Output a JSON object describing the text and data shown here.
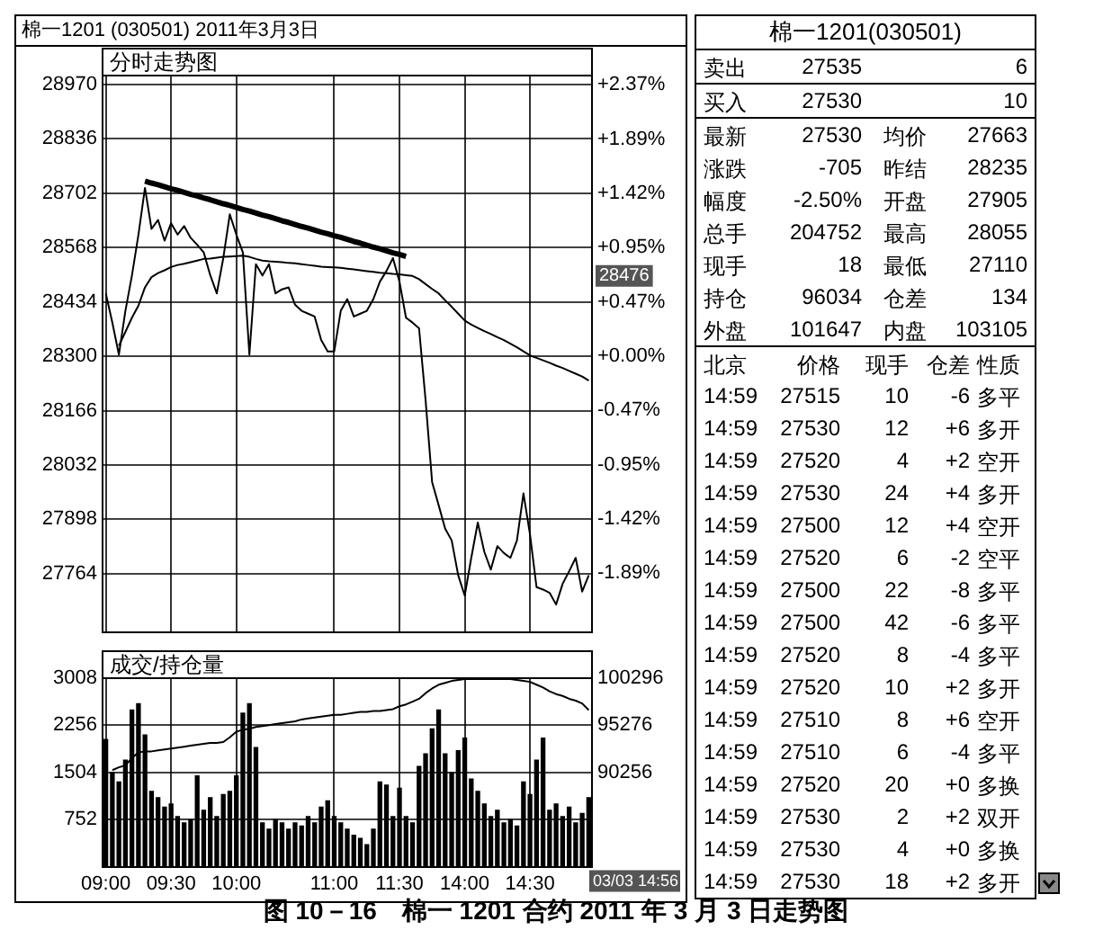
{
  "chart_data": [
    {
      "type": "line",
      "title": "棉一1201 (030501) 2011年3月3日",
      "subtitle": "分时走势图",
      "categories": [
        null,
        null,
        null,
        null,
        null,
        null,
        null,
        null,
        null,
        null,
        null,
        null,
        null,
        null,
        null,
        null,
        null,
        null,
        null,
        null,
        null,
        null,
        null,
        null,
        null,
        null,
        null,
        null,
        null,
        null,
        null,
        null,
        null,
        null,
        null,
        null,
        null,
        null,
        null,
        null,
        null,
        null,
        null,
        null,
        null,
        null,
        null,
        null,
        null,
        null,
        null,
        null,
        null,
        null,
        null,
        null,
        null,
        null,
        null,
        null,
        null,
        null,
        null,
        null,
        null,
        null,
        null,
        null,
        null,
        null,
        null,
        null,
        null,
        null,
        null
      ],
      "ylim": [
        27620,
        28992
      ],
      "yticks": [
        27764,
        27898,
        28032,
        28166,
        28300,
        28434,
        28568,
        28702,
        28836,
        28970
      ],
      "y2lim": [
        -2.403,
        2.445
      ],
      "y2ticks": [
        {
          "value": -1.89,
          "label": "-1.89%"
        },
        {
          "value": -1.42,
          "label": "-1.42%"
        },
        {
          "value": -0.95,
          "label": "-0.95%"
        },
        {
          "value": -0.47,
          "label": "-0.47%"
        },
        {
          "value": 0,
          "label": "+0.00%"
        },
        {
          "value": 0.47,
          "label": "+0.47%"
        },
        {
          "value": 0.95,
          "label": "+0.95%"
        },
        {
          "value": 1.42,
          "label": "+1.42%"
        },
        {
          "value": 1.89,
          "label": "+1.89%"
        },
        {
          "value": 2.37,
          "label": "+2.37%"
        }
      ],
      "grid": true,
      "tick_labels": "y",
      "annotations": [
        "28476"
      ],
      "series": [
        {
          "color": "#000000",
          "values": [
            28455,
            28383,
            28304,
            28412,
            28499,
            28600,
            28715,
            28614,
            28636,
            28585,
            28628,
            28600,
            28621,
            28592,
            28575,
            28556,
            28500,
            28455,
            28542,
            28650,
            28600,
            28556,
            28304,
            28527,
            28499,
            28527,
            28455,
            28465,
            28470,
            28427,
            28412,
            28405,
            28398,
            28340,
            28312,
            28312,
            28412,
            28441,
            28398,
            28405,
            28412,
            28441,
            28484,
            28510,
            28542,
            28484,
            28395,
            28383,
            28369,
            28192,
            27990,
            27933,
            27875,
            27846,
            27760,
            27710,
            27803,
            27890,
            27818,
            27774,
            27832,
            27815,
            27803,
            27846,
            27962,
            27861,
            27731,
            27725,
            27717,
            27688,
            27739,
            27770,
            27803,
            27720,
            27760
          ]
        },
        {
          "color": "#000000",
          "values": [
            null,
            null,
            28326,
            28360,
            28395,
            28425,
            28470,
            28495,
            28505,
            28512,
            28520,
            28525,
            28528,
            28532,
            28536,
            28540,
            28541,
            28543,
            28545,
            28546,
            28547,
            28548,
            28545,
            28540,
            28536,
            28534,
            28533,
            28532,
            28530,
            28529,
            28527,
            28525,
            28523,
            28521,
            28520,
            28519,
            28518,
            28516,
            28514,
            28512,
            28510,
            28508,
            28506,
            28505,
            28503,
            28502,
            28500,
            28498,
            28490,
            28478,
            28466,
            28455,
            28438,
            28422,
            28405,
            28388,
            28378,
            28370,
            28362,
            28355,
            28347,
            28340,
            28331,
            28322,
            28312,
            28302,
            28296,
            28290,
            28284,
            28277,
            28271,
            28264,
            28257,
            28250,
            28240
          ]
        },
        {
          "color": "#000000",
          "values": [
            null,
            null,
            null,
            null,
            null,
            null,
            28732,
            28727,
            28723,
            28718,
            28713,
            28709,
            28704,
            28699,
            28695,
            28690,
            28686,
            28681,
            28676,
            28672,
            28667,
            28662,
            28658,
            28653,
            28648,
            28644,
            28639,
            28634,
            28630,
            28625,
            28620,
            28616,
            28611,
            28606,
            28602,
            28597,
            28593,
            28588,
            28583,
            28579,
            28574,
            28569,
            28565,
            28560,
            28555,
            28551,
            28546,
            null,
            null,
            null,
            null,
            null,
            null,
            null,
            null,
            null,
            null,
            null,
            null,
            null,
            null,
            null,
            null,
            null,
            null,
            null,
            null,
            null,
            null,
            null,
            null,
            null,
            null,
            null,
            null
          ]
        }
      ]
    },
    {
      "type": "bar",
      "title": "成交/持仓量",
      "categories": [
        "09:00",
        null,
        null,
        null,
        null,
        null,
        null,
        null,
        null,
        null,
        "09:30",
        null,
        null,
        null,
        null,
        null,
        null,
        null,
        null,
        null,
        "10:00",
        null,
        null,
        null,
        null,
        null,
        null,
        null,
        null,
        null,
        null,
        null,
        null,
        null,
        null,
        "11:00",
        null,
        null,
        null,
        null,
        null,
        null,
        null,
        null,
        null,
        "11:30",
        null,
        null,
        null,
        null,
        null,
        null,
        null,
        null,
        null,
        "14:00",
        null,
        null,
        null,
        null,
        null,
        null,
        null,
        null,
        null,
        "14:30",
        null,
        null,
        null,
        null,
        null,
        null,
        null,
        null,
        null
      ],
      "ylim": [
        0,
        3008
      ],
      "yticks": [
        752,
        1504,
        2256,
        3008
      ],
      "y2lim": [
        80216,
        100296
      ],
      "y2ticks": [
        90256,
        95276,
        100296
      ],
      "grid": true,
      "annotations": [
        "03/03 14:56",
        "图 10－16　棉一 1201 合约 2011 年 3 月 3 日走势图"
      ],
      "series": [
        {
          "type": "bar",
          "color": "#000000",
          "values": [
            2030,
            1500,
            1350,
            1700,
            2500,
            2600,
            2100,
            1200,
            1100,
            950,
            1000,
            800,
            700,
            750,
            1450,
            900,
            1100,
            800,
            1150,
            1200,
            1450,
            2450,
            2600,
            1900,
            700,
            600,
            750,
            700,
            600,
            700,
            650,
            800,
            700,
            950,
            1050,
            800,
            700,
            600,
            500,
            450,
            350,
            600,
            1350,
            1300,
            800,
            1250,
            800,
            700,
            1600,
            1800,
            2200,
            2500,
            1800,
            1500,
            1850,
            2050,
            1400,
            1200,
            1000,
            800,
            900,
            700,
            750,
            650,
            1350,
            1150,
            1700,
            2050,
            900,
            1000,
            800,
            950,
            700,
            850,
            1100
          ]
        },
        {
          "type": "line",
          "axis": "y2",
          "color": "#000000",
          "values": [
            null,
            90500,
            90800,
            91000,
            91800,
            92400,
            92500,
            92500,
            92600,
            92700,
            92800,
            92900,
            93000,
            93100,
            93200,
            93300,
            93400,
            93400,
            93500,
            94000,
            94600,
            94800,
            94900,
            95100,
            95200,
            95300,
            95400,
            95500,
            95600,
            95700,
            95900,
            96000,
            96100,
            96200,
            96300,
            96400,
            96400,
            96500,
            96600,
            96700,
            96700,
            96800,
            96800,
            96900,
            97000,
            97300,
            97500,
            97800,
            98100,
            98700,
            99200,
            99600,
            99800,
            100000,
            100100,
            100200,
            100200,
            100200,
            100200,
            100200,
            100200,
            100200,
            100200,
            100100,
            100000,
            99900,
            99600,
            99300,
            98900,
            98600,
            98400,
            98100,
            97900,
            97600,
            96900
          ]
        }
      ]
    },
    {
      "type": "other",
      "title": "棉一1201(030501)",
      "annotations": [
        "卖出 27535 6",
        "买入 27530 10",
        "最新 27530 均价 27663",
        "涨跌 -705 昨结 28235",
        "幅度 -2.50% 开盘 27905",
        "总手 204752 最高 28055",
        "现手 18 最低 27110",
        "持仓 96034 仓差 134",
        "外盘 101647 内盘 103105",
        "北京 价格 现手 仓差 性质",
        "14:59 27515 10 -6 多平",
        "14:59 27530 12 +6 多开",
        "14:59 27520 4 +2 空开",
        "14:59 27530 24 +4 多开",
        "14:59 27500 12 +4 空开",
        "14:59 27520 6 -2 空平",
        "14:59 27500 22 -8 多平",
        "14:59 27500 42 -6 多平",
        "14:59 27520 8 -4 多平",
        "14:59 27520 10 +2 多开",
        "14:59 27510 8 +6 空开",
        "14:59 27510 6 -4 多平",
        "14:59 27520 20 +0 多换",
        "14:59 27530 2 +2 双开",
        "14:59 27530 4 +0 多换",
        "14:59 27530 18 +2 多开"
      ]
    }
  ]
}
